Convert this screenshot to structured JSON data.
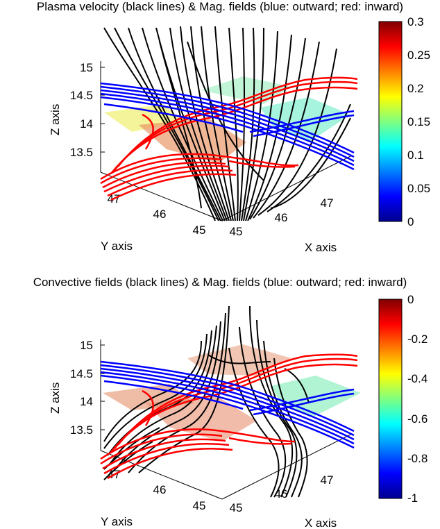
{
  "panels": [
    {
      "title": "Plasma velocity (black lines) & Mag. fields (blue: outward; red: inward)",
      "z_axis": {
        "label": "Z axis",
        "ticks": [
          "15",
          "14.5",
          "14",
          "13.5"
        ]
      },
      "y_axis": {
        "label": "Y axis",
        "ticks": [
          "47",
          "46",
          "45"
        ]
      },
      "x_axis": {
        "label": "X axis",
        "ticks": [
          "45",
          "46",
          "47"
        ]
      },
      "colorbar": {
        "ticks": [
          "0.3",
          "0.25",
          "0.2",
          "0.15",
          "0.1",
          "0.05",
          "0"
        ],
        "range": [
          0,
          0.3
        ]
      },
      "line_colors": {
        "flow": "#000000",
        "outward": "#0000ff",
        "inward": "#ff0000"
      }
    },
    {
      "title": "Convective fields (black lines) & Mag. fields (blue: outward; red: inward)",
      "z_axis": {
        "label": "Z axis",
        "ticks": [
          "15",
          "14.5",
          "14",
          "13.5"
        ]
      },
      "y_axis": {
        "label": "Y axis",
        "ticks": [
          "47",
          "46",
          "45"
        ]
      },
      "x_axis": {
        "label": "X axis",
        "ticks": [
          "45",
          "46",
          "47"
        ]
      },
      "colorbar": {
        "ticks": [
          "0",
          "-0.2",
          "-0.4",
          "-0.6",
          "-0.8",
          "-1"
        ],
        "range": [
          -1,
          0
        ]
      },
      "line_colors": {
        "flow": "#000000",
        "outward": "#0000ff",
        "inward": "#ff0000"
      }
    }
  ]
}
